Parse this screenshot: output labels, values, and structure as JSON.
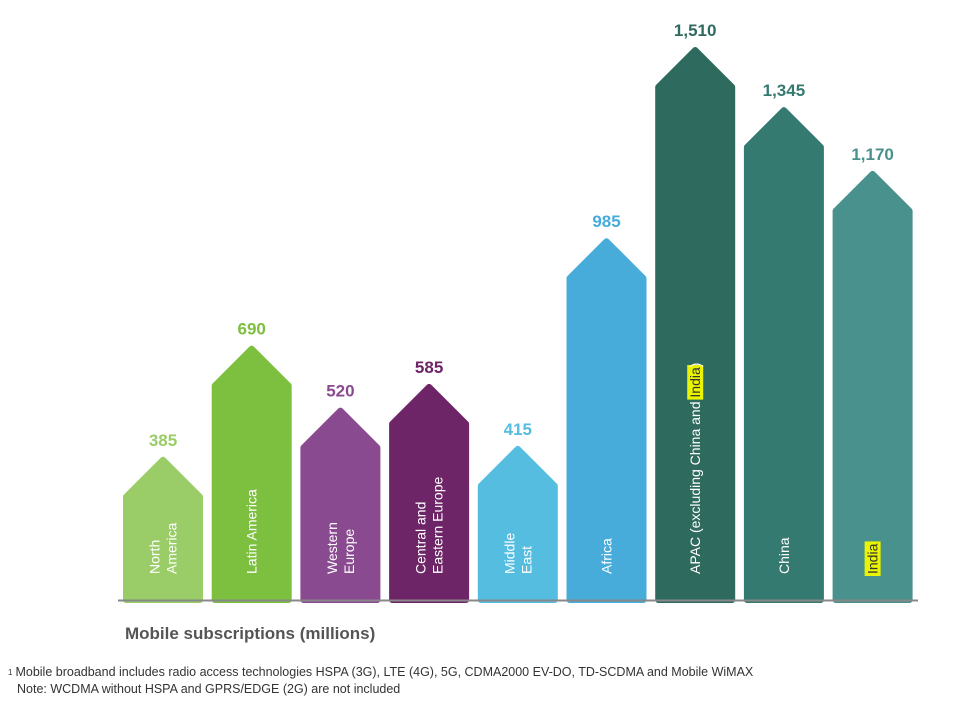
{
  "chart_data": {
    "type": "bar",
    "title": "",
    "xlabel": "Mobile subscriptions (millions)",
    "ylabel": "",
    "ylim": [
      0,
      1510
    ],
    "categories": [
      [
        "North",
        "America"
      ],
      [
        "Latin America"
      ],
      [
        "Western",
        "Europe"
      ],
      [
        "Central and",
        "Eastern Europe"
      ],
      [
        "Middle",
        "East"
      ],
      [
        "Africa"
      ],
      [
        "APAC (excluding China and India)"
      ],
      [
        "China"
      ],
      [
        "India"
      ]
    ],
    "values": [
      385,
      690,
      520,
      585,
      415,
      985,
      1510,
      1345,
      1170
    ],
    "value_labels": [
      "385",
      "690",
      "520",
      "585",
      "415",
      "985",
      "1,510",
      "1,345",
      "1,170"
    ],
    "colors": [
      "#9acd67",
      "#7dbf3f",
      "#8a4a90",
      "#6e2568",
      "#55bde0",
      "#47acd9",
      "#2f6a5f",
      "#357a71",
      "#49918c"
    ],
    "label_colors": [
      "#9acd67",
      "#7dbf3f",
      "#8a4a90",
      "#6e2568",
      "#55bde0",
      "#47acd9",
      "#2f6a5f",
      "#357a71",
      "#49918c"
    ],
    "highlight_term": "India",
    "highlight_color": "#e8f400"
  },
  "footnote": {
    "marker": "1",
    "line1": "Mobile broadband includes radio access technologies HSPA (3G), LTE (4G), 5G, CDMA2000 EV-DO, TD-SCDMA and Mobile WiMAX",
    "line2": "Note: WCDMA without HSPA and GPRS/EDGE (2G) are not included"
  }
}
